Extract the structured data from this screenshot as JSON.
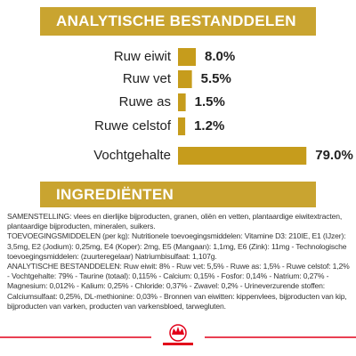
{
  "chart_data": {
    "type": "bar",
    "title": "ANALYTISCHE BESTANDDELEN",
    "categories": [
      "Ruw eiwit",
      "Ruw vet",
      "Ruwe as",
      "Ruwe celstof",
      "Vochtgehalte"
    ],
    "values": [
      8.0,
      5.5,
      1.5,
      1.2,
      79.0
    ],
    "value_labels": [
      "8.0%",
      "5.5%",
      "1.5%",
      "1.2%",
      "79.0%"
    ],
    "color": "#c69c1c"
  },
  "ingredients": {
    "title": "INGREDIËNTEN",
    "paragraphs": [
      "SAMENSTELLING: vlees en dierlijke bijproducten, granen, oliën en vetten, plantaardige eiwitextracten, plantaardige bijproducten, mineralen, suikers.",
      "TOEVOEGINGSMIDDELEN (per kg): Nutritionele toevoegingsmiddelen: Vitamine D3: 210IE, E1 (IJzer): 3,5mg, E2 (Jodium): 0,25mg, E4 (Koper): 2mg, E5 (Mangaan): 1,1mg, E6 (Zink): 11mg - Technologische toevoegingsmiddelen: (zuurteregelaar) Natriumbisulfaat: 1,107g.",
      "ANALYTISCHE BESTANDDELEN: Ruw eiwit: 8% - Ruw vet: 5,5% - Ruwe as: 1,5% - Ruwe celstof: 1,2% - Vochtgehalte: 79% - Taurine (totaal): 0,115% - Calcium: 0,15% - Fosfor: 0,14% - Natrium: 0,27% - Magnesium: 0,012% - Kalium: 0,25% - Chloride: 0,37% - Zwavel: 0,2% - Urineverzurende stoffen: Calciumsulfaat: 0,25%, DL-methionine: 0,03% - Bronnen van eiwitten: kippenvlees, bijproducten van kip, bijproducten van varken, producten van varkensbloed, tarwegluten."
    ]
  }
}
